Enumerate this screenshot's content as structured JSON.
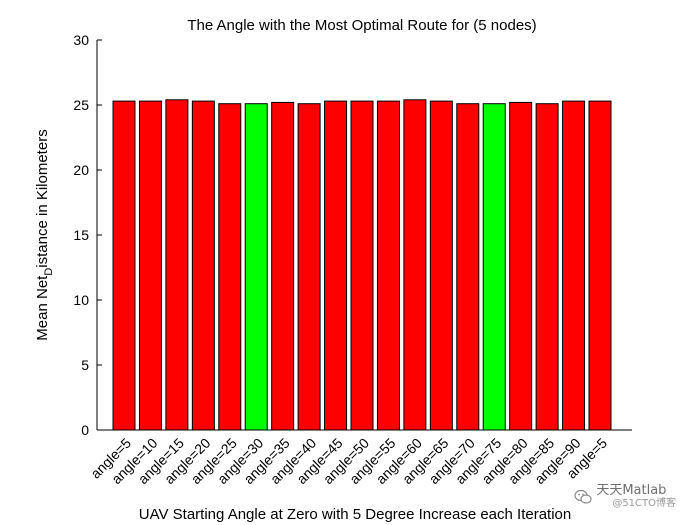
{
  "chart_data": {
    "type": "bar",
    "title": "The Angle with the Most Optimal Route for (5 nodes)",
    "xlabel": "UAV Starting Angle at Zero with 5 Degree Increase each Iteration",
    "ylabel_main": "Mean Net",
    "ylabel_sub": "D",
    "ylabel_rest": "istance in Kilometers",
    "ylim": [
      0,
      30
    ],
    "yticks": [
      0,
      5,
      10,
      15,
      20,
      25,
      30
    ],
    "categories": [
      "angle=5",
      "angle=10",
      "angle=15",
      "angle=20",
      "angle=25",
      "angle=30",
      "angle=35",
      "angle=40",
      "angle=45",
      "angle=50",
      "angle=55",
      "angle=60",
      "angle=65",
      "angle=70",
      "angle=75",
      "angle=80",
      "angle=85",
      "angle=90",
      "angle=5"
    ],
    "values": [
      25.3,
      25.3,
      25.4,
      25.3,
      25.1,
      25.1,
      25.2,
      25.1,
      25.3,
      25.3,
      25.3,
      25.4,
      25.3,
      25.1,
      25.1,
      25.2,
      25.1,
      25.3,
      25.3
    ],
    "highlight_indices": [
      5,
      14
    ],
    "colors": {
      "bar": "#ff0000",
      "highlight": "#00ff00",
      "edge": "#000000"
    }
  },
  "watermark": {
    "text": "天天Matlab",
    "sub": "@51CTO博客",
    "icon": "wechat-icon"
  }
}
